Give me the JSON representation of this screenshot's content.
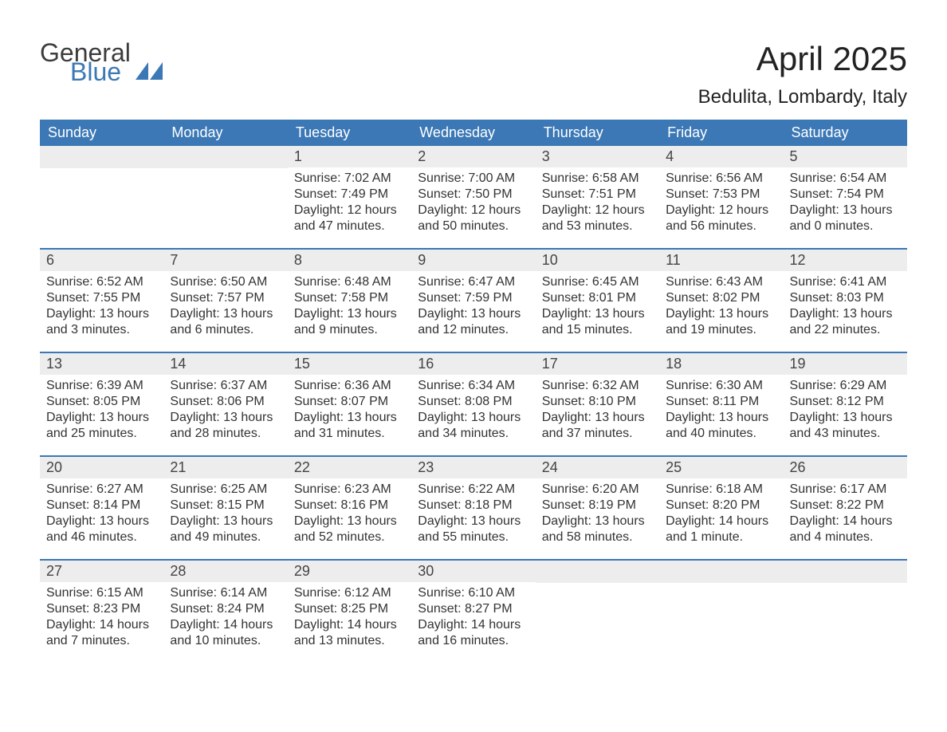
{
  "logo": {
    "text1": "General",
    "text2": "Blue",
    "shape_color": "#3b78b5"
  },
  "title": "April 2025",
  "subtitle": "Bedulita, Lombardy, Italy",
  "header_bg": "#3b78b5",
  "header_fg": "#ffffff",
  "daynum_bg": "#ededed",
  "week_border": "#3b78b5",
  "text_color": "#333333",
  "weekdays": [
    "Sunday",
    "Monday",
    "Tuesday",
    "Wednesday",
    "Thursday",
    "Friday",
    "Saturday"
  ],
  "weeks": [
    [
      {
        "blank": true
      },
      {
        "blank": true
      },
      {
        "n": "1",
        "sunrise": "Sunrise: 7:02 AM",
        "sunset": "Sunset: 7:49 PM",
        "day1": "Daylight: 12 hours",
        "day2": "and 47 minutes."
      },
      {
        "n": "2",
        "sunrise": "Sunrise: 7:00 AM",
        "sunset": "Sunset: 7:50 PM",
        "day1": "Daylight: 12 hours",
        "day2": "and 50 minutes."
      },
      {
        "n": "3",
        "sunrise": "Sunrise: 6:58 AM",
        "sunset": "Sunset: 7:51 PM",
        "day1": "Daylight: 12 hours",
        "day2": "and 53 minutes."
      },
      {
        "n": "4",
        "sunrise": "Sunrise: 6:56 AM",
        "sunset": "Sunset: 7:53 PM",
        "day1": "Daylight: 12 hours",
        "day2": "and 56 minutes."
      },
      {
        "n": "5",
        "sunrise": "Sunrise: 6:54 AM",
        "sunset": "Sunset: 7:54 PM",
        "day1": "Daylight: 13 hours",
        "day2": "and 0 minutes."
      }
    ],
    [
      {
        "n": "6",
        "sunrise": "Sunrise: 6:52 AM",
        "sunset": "Sunset: 7:55 PM",
        "day1": "Daylight: 13 hours",
        "day2": "and 3 minutes."
      },
      {
        "n": "7",
        "sunrise": "Sunrise: 6:50 AM",
        "sunset": "Sunset: 7:57 PM",
        "day1": "Daylight: 13 hours",
        "day2": "and 6 minutes."
      },
      {
        "n": "8",
        "sunrise": "Sunrise: 6:48 AM",
        "sunset": "Sunset: 7:58 PM",
        "day1": "Daylight: 13 hours",
        "day2": "and 9 minutes."
      },
      {
        "n": "9",
        "sunrise": "Sunrise: 6:47 AM",
        "sunset": "Sunset: 7:59 PM",
        "day1": "Daylight: 13 hours",
        "day2": "and 12 minutes."
      },
      {
        "n": "10",
        "sunrise": "Sunrise: 6:45 AM",
        "sunset": "Sunset: 8:01 PM",
        "day1": "Daylight: 13 hours",
        "day2": "and 15 minutes."
      },
      {
        "n": "11",
        "sunrise": "Sunrise: 6:43 AM",
        "sunset": "Sunset: 8:02 PM",
        "day1": "Daylight: 13 hours",
        "day2": "and 19 minutes."
      },
      {
        "n": "12",
        "sunrise": "Sunrise: 6:41 AM",
        "sunset": "Sunset: 8:03 PM",
        "day1": "Daylight: 13 hours",
        "day2": "and 22 minutes."
      }
    ],
    [
      {
        "n": "13",
        "sunrise": "Sunrise: 6:39 AM",
        "sunset": "Sunset: 8:05 PM",
        "day1": "Daylight: 13 hours",
        "day2": "and 25 minutes."
      },
      {
        "n": "14",
        "sunrise": "Sunrise: 6:37 AM",
        "sunset": "Sunset: 8:06 PM",
        "day1": "Daylight: 13 hours",
        "day2": "and 28 minutes."
      },
      {
        "n": "15",
        "sunrise": "Sunrise: 6:36 AM",
        "sunset": "Sunset: 8:07 PM",
        "day1": "Daylight: 13 hours",
        "day2": "and 31 minutes."
      },
      {
        "n": "16",
        "sunrise": "Sunrise: 6:34 AM",
        "sunset": "Sunset: 8:08 PM",
        "day1": "Daylight: 13 hours",
        "day2": "and 34 minutes."
      },
      {
        "n": "17",
        "sunrise": "Sunrise: 6:32 AM",
        "sunset": "Sunset: 8:10 PM",
        "day1": "Daylight: 13 hours",
        "day2": "and 37 minutes."
      },
      {
        "n": "18",
        "sunrise": "Sunrise: 6:30 AM",
        "sunset": "Sunset: 8:11 PM",
        "day1": "Daylight: 13 hours",
        "day2": "and 40 minutes."
      },
      {
        "n": "19",
        "sunrise": "Sunrise: 6:29 AM",
        "sunset": "Sunset: 8:12 PM",
        "day1": "Daylight: 13 hours",
        "day2": "and 43 minutes."
      }
    ],
    [
      {
        "n": "20",
        "sunrise": "Sunrise: 6:27 AM",
        "sunset": "Sunset: 8:14 PM",
        "day1": "Daylight: 13 hours",
        "day2": "and 46 minutes."
      },
      {
        "n": "21",
        "sunrise": "Sunrise: 6:25 AM",
        "sunset": "Sunset: 8:15 PM",
        "day1": "Daylight: 13 hours",
        "day2": "and 49 minutes."
      },
      {
        "n": "22",
        "sunrise": "Sunrise: 6:23 AM",
        "sunset": "Sunset: 8:16 PM",
        "day1": "Daylight: 13 hours",
        "day2": "and 52 minutes."
      },
      {
        "n": "23",
        "sunrise": "Sunrise: 6:22 AM",
        "sunset": "Sunset: 8:18 PM",
        "day1": "Daylight: 13 hours",
        "day2": "and 55 minutes."
      },
      {
        "n": "24",
        "sunrise": "Sunrise: 6:20 AM",
        "sunset": "Sunset: 8:19 PM",
        "day1": "Daylight: 13 hours",
        "day2": "and 58 minutes."
      },
      {
        "n": "25",
        "sunrise": "Sunrise: 6:18 AM",
        "sunset": "Sunset: 8:20 PM",
        "day1": "Daylight: 14 hours",
        "day2": "and 1 minute."
      },
      {
        "n": "26",
        "sunrise": "Sunrise: 6:17 AM",
        "sunset": "Sunset: 8:22 PM",
        "day1": "Daylight: 14 hours",
        "day2": "and 4 minutes."
      }
    ],
    [
      {
        "n": "27",
        "sunrise": "Sunrise: 6:15 AM",
        "sunset": "Sunset: 8:23 PM",
        "day1": "Daylight: 14 hours",
        "day2": "and 7 minutes."
      },
      {
        "n": "28",
        "sunrise": "Sunrise: 6:14 AM",
        "sunset": "Sunset: 8:24 PM",
        "day1": "Daylight: 14 hours",
        "day2": "and 10 minutes."
      },
      {
        "n": "29",
        "sunrise": "Sunrise: 6:12 AM",
        "sunset": "Sunset: 8:25 PM",
        "day1": "Daylight: 14 hours",
        "day2": "and 13 minutes."
      },
      {
        "n": "30",
        "sunrise": "Sunrise: 6:10 AM",
        "sunset": "Sunset: 8:27 PM",
        "day1": "Daylight: 14 hours",
        "day2": "and 16 minutes."
      },
      {
        "blank": true
      },
      {
        "blank": true
      },
      {
        "blank": true
      }
    ]
  ]
}
